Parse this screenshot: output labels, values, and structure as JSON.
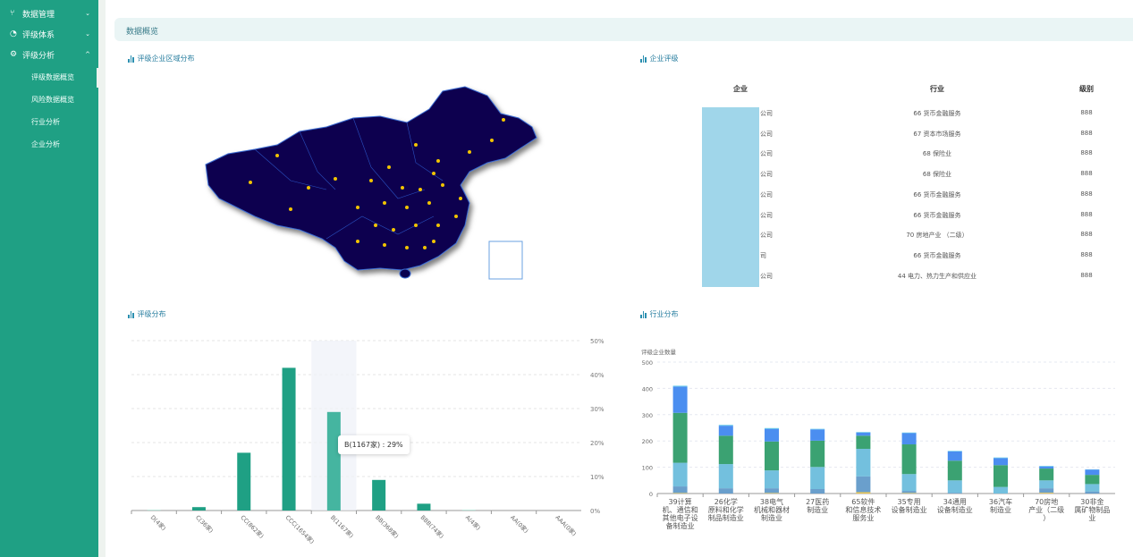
{
  "sidebar": {
    "items": [
      {
        "label": "数据管理",
        "icon": "branch-icon",
        "expanded": false
      },
      {
        "label": "评级体系",
        "icon": "pie-icon",
        "expanded": false
      },
      {
        "label": "评级分析",
        "icon": "gear-icon",
        "expanded": true
      }
    ],
    "subitems": [
      "评级数据概览",
      "风险数据概览",
      "行业分析",
      "企业分析"
    ],
    "active_subitem": "评级数据概览"
  },
  "header": {
    "title": "数据概览"
  },
  "panels": {
    "map_title": "评级企业区域分布",
    "table_title": "企业评级",
    "rating_title": "评级分布",
    "industry_title": "行业分布"
  },
  "colors": {
    "sidebar": "#1fa084",
    "bar": "#1fa084",
    "map": "#0a0050"
  },
  "table": {
    "headers": [
      "企业",
      "行业",
      "级别"
    ],
    "rows": [
      {
        "company": "公司",
        "industry": "66 货币金融服务",
        "level": "888"
      },
      {
        "company": "公司",
        "industry": "67 资本市场服务",
        "level": "888"
      },
      {
        "company": "公司",
        "industry": "68 保险业",
        "level": "888"
      },
      {
        "company": "公司",
        "industry": "68 保险业",
        "level": "888"
      },
      {
        "company": "公司",
        "industry": "66 货币金融服务",
        "level": "888"
      },
      {
        "company": "公司",
        "industry": "66 货币金融服务",
        "level": "888"
      },
      {
        "company": "公司",
        "industry": "70 房地产业 （二级）",
        "level": "888"
      },
      {
        "company": "司",
        "industry": "66 货币金融服务",
        "level": "888"
      },
      {
        "company": "公司",
        "industry": "44 电力、热力生产和供应业",
        "level": "888"
      }
    ]
  },
  "chart_data": [
    {
      "type": "bar",
      "categories": [
        "D(4家)",
        "C(36家)",
        "CC(862家)",
        "CCC(1654家)",
        "B(1167家)",
        "BB(368家)",
        "BBB(74家)",
        "A(4家)",
        "AA(0家)",
        "AAA(0家)"
      ],
      "values": [
        0.2,
        1,
        17,
        42,
        29,
        9,
        2,
        0.2,
        0,
        0
      ],
      "ylim": [
        0,
        50
      ],
      "yticks": [
        "0%",
        "10%",
        "20%",
        "30%",
        "40%",
        "50%"
      ],
      "y_axis_position": "right",
      "grid": true,
      "highlight_index": 4,
      "tooltip": "B(1167家) : 29%"
    },
    {
      "type": "bar",
      "stacked": true,
      "ylabel": "评级企业数量",
      "ylim": [
        0,
        500
      ],
      "yticks": [
        "0",
        "100",
        "200",
        "300",
        "400",
        "500"
      ],
      "grid": true,
      "categories": [
        "39计算机、通信和其他电子设备制造业",
        "26化学原料和化学制品制造业",
        "38电气机械和器材制造业",
        "27医药制造业",
        "65软件和信息技术服务业",
        "35专用设备制造业",
        "34通用设备制造业",
        "36汽车制造业",
        "70房地产业（二级）",
        "30非金属矿物制品业"
      ],
      "series": [
        {
          "color": "#f2c94c",
          "values": [
            2,
            0,
            2,
            0,
            5,
            2,
            0,
            0,
            3,
            0
          ]
        },
        {
          "color": "#6a9fcc",
          "values": [
            25,
            20,
            18,
            17,
            60,
            8,
            3,
            0,
            17,
            8
          ]
        },
        {
          "color": "#73c0de",
          "values": [
            90,
            92,
            68,
            84,
            105,
            64,
            47,
            25,
            30,
            28
          ]
        },
        {
          "color": "#3ba272",
          "values": [
            190,
            108,
            110,
            100,
            50,
            113,
            75,
            83,
            45,
            35
          ]
        },
        {
          "color": "#4b8ef0",
          "values": [
            100,
            38,
            48,
            43,
            12,
            43,
            35,
            27,
            8,
            20
          ]
        },
        {
          "color": "#5ac8e8",
          "values": [
            3,
            3,
            3,
            2,
            2,
            2,
            2,
            2,
            2,
            1
          ]
        }
      ]
    }
  ]
}
